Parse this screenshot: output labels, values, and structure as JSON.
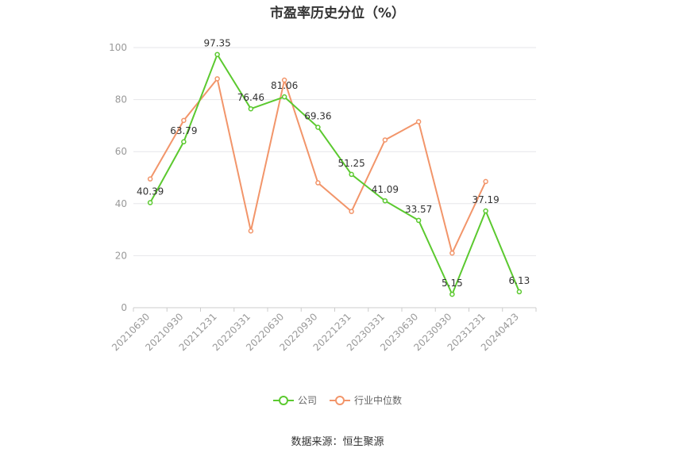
{
  "chart_data": {
    "type": "line",
    "title": "市盈率历史分位（%）",
    "categories": [
      "20210630",
      "20210930",
      "20211231",
      "20220331",
      "20220630",
      "20220930",
      "20221231",
      "20230331",
      "20230630",
      "20230930",
      "20231231",
      "20240423"
    ],
    "ylim": [
      0,
      100
    ],
    "yticks": [
      0,
      20,
      40,
      60,
      80,
      100
    ],
    "grid": true,
    "legend_position": "bottom",
    "series": [
      {
        "name": "公司",
        "color": "#5bc92f",
        "show_labels": true,
        "values": [
          40.39,
          63.79,
          97.35,
          76.46,
          81.06,
          69.36,
          51.25,
          41.09,
          33.57,
          5.15,
          37.19,
          6.13
        ]
      },
      {
        "name": "行业中位数",
        "color": "#f2956a",
        "show_labels": false,
        "values": [
          49.5,
          72.0,
          88.0,
          29.5,
          87.5,
          48.0,
          37.0,
          64.5,
          71.5,
          21.0,
          48.5,
          null
        ]
      }
    ]
  },
  "source": "数据来源：恒生聚源"
}
